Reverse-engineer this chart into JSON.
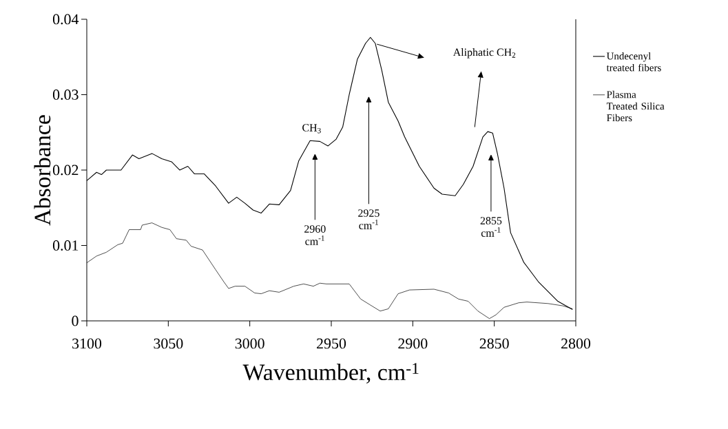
{
  "chart_data": {
    "type": "line",
    "xlabel": "Wavenumber, cm$^{-1}$",
    "ylabel": "Absorbance",
    "xlim": [
      3100,
      2800
    ],
    "xticks": [
      3100,
      3050,
      3000,
      2950,
      2900,
      2850,
      2800
    ],
    "ylim": [
      0,
      0.04
    ],
    "yticks": [
      0,
      0.01,
      0.02,
      0.03,
      0.04
    ],
    "legend": "right",
    "series": [
      {
        "name": "Undecenyl treated fibers",
        "color": "#000000",
        "x": [
          3100,
          3094,
          3091,
          3088,
          3079,
          3072,
          3068,
          3060,
          3054,
          3048,
          3043,
          3038,
          3034,
          3028,
          3021,
          3013,
          3008,
          3003,
          2998,
          2993,
          2988,
          2982,
          2975,
          2970,
          2963,
          2957,
          2952,
          2947,
          2943,
          2939,
          2934,
          2929,
          2926,
          2923,
          2919,
          2915,
          2909,
          2905,
          2896,
          2887,
          2882,
          2874,
          2869,
          2863,
          2857,
          2854,
          2851,
          2848,
          2844,
          2840,
          2832,
          2823,
          2811,
          2802
        ],
        "values": [
          0.0186,
          0.0197,
          0.0194,
          0.02,
          0.02,
          0.022,
          0.0215,
          0.0222,
          0.0215,
          0.0211,
          0.02,
          0.0205,
          0.0195,
          0.0195,
          0.0179,
          0.0156,
          0.0164,
          0.0156,
          0.0147,
          0.0143,
          0.0155,
          0.0154,
          0.0173,
          0.0212,
          0.0239,
          0.0238,
          0.0232,
          0.0241,
          0.0257,
          0.03,
          0.0347,
          0.0368,
          0.0376,
          0.0368,
          0.0332,
          0.029,
          0.0265,
          0.0244,
          0.0205,
          0.0176,
          0.0168,
          0.0166,
          0.0181,
          0.0205,
          0.0244,
          0.0251,
          0.0249,
          0.0221,
          0.0176,
          0.0117,
          0.0078,
          0.0052,
          0.0026,
          0.0015
        ]
      },
      {
        "name": "Plasma Treated Silica Fibers",
        "color": "#000000",
        "x": [
          3100,
          3094,
          3088,
          3081,
          3078,
          3074,
          3067,
          3066,
          3060,
          3054,
          3049,
          3045,
          3039,
          3036,
          3029,
          3021,
          3016,
          3013,
          3009,
          3003,
          2997,
          2993,
          2988,
          2982,
          2973,
          2967,
          2961,
          2957,
          2953,
          2939,
          2932,
          2926,
          2920,
          2915,
          2909,
          2902,
          2887,
          2878,
          2872,
          2866,
          2860,
          2853,
          2849,
          2844,
          2835,
          2830,
          2817,
          2808,
          2802
        ],
        "values": [
          0.0077,
          0.0086,
          0.0091,
          0.0101,
          0.0103,
          0.0121,
          0.0121,
          0.0127,
          0.013,
          0.0124,
          0.0121,
          0.0109,
          0.0107,
          0.0099,
          0.0094,
          0.0068,
          0.0052,
          0.0043,
          0.0046,
          0.0046,
          0.0037,
          0.0036,
          0.004,
          0.0038,
          0.0046,
          0.0049,
          0.0046,
          0.005,
          0.0049,
          0.0049,
          0.0029,
          0.0021,
          0.0013,
          0.0016,
          0.0036,
          0.0041,
          0.0042,
          0.0037,
          0.0029,
          0.0026,
          0.0013,
          0.0003,
          0.0008,
          0.0018,
          0.0024,
          0.0025,
          0.0023,
          0.002,
          0.0016
        ]
      }
    ],
    "annotations": [
      "CH$_{3}$",
      "Aliphatic CH$_{2}$",
      "2960 cm$^{-1}$",
      "2925 cm$^{-1}$",
      "2855 cm$^{-1}$"
    ]
  }
}
